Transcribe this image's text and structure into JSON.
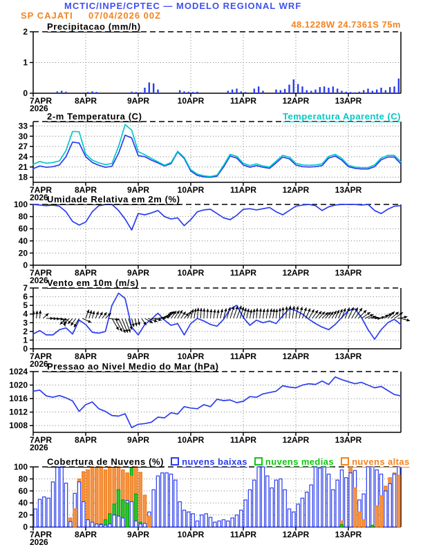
{
  "header": {
    "title": "MCTIC/INPE/CPTEC — MODELO REGIONAL WRF",
    "station": "SP CAJATI",
    "run": "07/04/2026 00Z",
    "location": "48.1228W 24.7361S 75m"
  },
  "colors": {
    "header_blue": "#4050ef",
    "orange": "#f5821e",
    "cyan": "#00c8c8",
    "series_blue": "#2a3cee",
    "green": "#0dc80d",
    "black": "#000000"
  },
  "x_axis": {
    "day_labels": [
      "7APR",
      "8APR",
      "9APR",
      "10APR",
      "11APR",
      "12APR",
      "13APR"
    ],
    "year": "2026",
    "xlim_days": [
      0,
      7
    ]
  },
  "chart_data": [
    {
      "id": "precipitation",
      "type": "bar",
      "title": "Precipitacao (mm/h)",
      "ylim": [
        0,
        2
      ],
      "yticks": [
        0,
        1,
        2
      ],
      "bar_color": "#2a3cee",
      "values": [
        0,
        0,
        0,
        0,
        0,
        0.06,
        0.08,
        0.05,
        0,
        0,
        0,
        0,
        0.04,
        0.06,
        0.04,
        0,
        0,
        0,
        0,
        0,
        0,
        0,
        0.05,
        0.04,
        0.03,
        0.18,
        0.35,
        0.32,
        0.12,
        0,
        0,
        0,
        0,
        0.1,
        0.06,
        0.05,
        0.04,
        0.05,
        0,
        0,
        0,
        0,
        0,
        0,
        0.08,
        0.12,
        0.15,
        0.06,
        0.04,
        0,
        0.15,
        0.22,
        0.08,
        0,
        0,
        0.12,
        0.1,
        0.14,
        0.28,
        0.45,
        0.3,
        0.22,
        0.1,
        0.08,
        0.12,
        0.2,
        0.22,
        0.18,
        0.22,
        0.15,
        0.08,
        0.05,
        0.04,
        0.03,
        0.05,
        0.1,
        0.15,
        0.08,
        0.12,
        0.18,
        0.1,
        0.2,
        0.22,
        0.48
      ]
    },
    {
      "id": "temperature",
      "type": "line",
      "title": "2-m Temperatura (C)",
      "right_label": "Temperatura Aparente (C)",
      "ylim": [
        16.5,
        34.3
      ],
      "yticks": [
        18,
        21,
        24,
        27,
        30,
        33
      ],
      "series": [
        {
          "name": "2-m Temperatura (C)",
          "color": "#2a3cee",
          "values": [
            20.5,
            21.3,
            20.9,
            21.1,
            21.6,
            24.0,
            28.3,
            28.0,
            24.0,
            22.3,
            21.5,
            20.9,
            21.2,
            25.0,
            30.3,
            29.5,
            24.3,
            24.0,
            23.0,
            22.2,
            21.3,
            22.0,
            25.4,
            23.5,
            19.8,
            18.5,
            18.1,
            18.0,
            18.3,
            21.0,
            24.2,
            23.6,
            21.6,
            20.9,
            21.4,
            20.9,
            20.6,
            22.2,
            23.9,
            23.4,
            21.6,
            21.1,
            21.0,
            21.1,
            21.4,
            23.6,
            24.2,
            23.0,
            21.1,
            20.6,
            20.4,
            20.4,
            21.1,
            23.1,
            23.9,
            23.9,
            21.9
          ]
        },
        {
          "name": "Temperatura Aparente (C)",
          "color": "#00c8c8",
          "values": [
            21.8,
            22.6,
            22.1,
            22.3,
            22.8,
            25.8,
            31.4,
            31.3,
            24.8,
            23.0,
            22.2,
            21.7,
            22.0,
            27.0,
            33.4,
            31.8,
            25.5,
            24.6,
            23.5,
            22.5,
            21.5,
            22.3,
            25.6,
            23.8,
            20.2,
            18.9,
            18.4,
            18.2,
            18.6,
            21.5,
            24.7,
            24.1,
            22.1,
            21.4,
            21.9,
            21.3,
            21.0,
            22.7,
            24.4,
            23.9,
            22.1,
            21.6,
            21.5,
            21.6,
            21.9,
            24.1,
            24.7,
            23.5,
            21.5,
            21.0,
            20.8,
            20.8,
            21.6,
            23.6,
            24.4,
            24.4,
            22.5
          ]
        }
      ]
    },
    {
      "id": "humidity",
      "type": "line",
      "title": "Umidade Relativa em 2m (%)",
      "ylim": [
        0,
        100
      ],
      "yticks": [
        0,
        20,
        40,
        60,
        80,
        100
      ],
      "series": [
        {
          "name": "Umidade Relativa em 2m (%)",
          "color": "#2a3cee",
          "values": [
            100,
            99,
            98,
            99,
            97,
            88,
            72,
            66,
            71,
            88,
            98,
            100,
            100,
            90,
            76,
            58,
            85,
            83,
            86,
            90,
            80,
            76,
            78,
            65,
            75,
            88,
            91,
            92,
            85,
            78,
            75,
            82,
            92,
            93,
            91,
            93,
            95,
            88,
            83,
            90,
            97,
            99,
            100,
            98,
            90,
            96,
            99,
            100,
            100,
            100,
            99,
            100,
            90,
            85,
            92,
            97,
            98
          ]
        }
      ]
    },
    {
      "id": "wind",
      "type": "line+vectors",
      "title": "Vento em 10m (m/s)",
      "ylim": [
        0,
        7
      ],
      "yticks": [
        0,
        1,
        2,
        3,
        4,
        5,
        6,
        7
      ],
      "series": [
        {
          "name": "Velocidade do vento em 10m (m/s)",
          "color": "#2a3cee",
          "values": [
            1.7,
            2.1,
            1.6,
            1.6,
            2.2,
            2.4,
            1.7,
            3.3,
            2.8,
            1.9,
            1.8,
            2.0,
            5.0,
            6.4,
            5.8,
            2.5,
            1.6,
            2.8,
            3.4,
            4.1,
            3.3,
            2.7,
            2.9,
            1.6,
            2.9,
            3.5,
            3.2,
            2.8,
            2.6,
            3.4,
            4.6,
            5.0,
            3.6,
            2.7,
            3.3,
            3.0,
            3.2,
            2.9,
            3.8,
            4.6,
            4.4,
            4.0,
            3.4,
            2.9,
            2.5,
            2.2,
            2.8,
            3.6,
            4.4,
            4.6,
            3.6,
            2.2,
            1.1,
            2.2,
            3.0,
            3.4,
            2.8
          ]
        }
      ],
      "vectors": {
        "baseline_value": 3.5,
        "color": "#000000",
        "direction_deg": [
          85,
          85,
          0,
          -5,
          -10,
          -135,
          -130,
          -120,
          70,
          75,
          60,
          45,
          -60,
          -65,
          -70,
          -75,
          -80,
          -30,
          -10,
          10,
          40,
          55,
          60,
          50,
          75,
          85,
          88,
          85,
          80,
          75,
          72,
          70,
          75,
          80,
          85,
          82,
          78,
          85,
          88,
          85,
          80,
          70,
          60,
          50,
          45,
          55,
          65,
          70,
          65,
          55,
          35,
          15,
          0,
          25,
          45,
          35,
          -15
        ]
      }
    },
    {
      "id": "pressure",
      "type": "line",
      "title": "Pressao ao Nivel Medio do Mar (hPa)",
      "ylim": [
        1006,
        1024
      ],
      "yticks": [
        1008,
        1012,
        1016,
        1020,
        1024
      ],
      "series": [
        {
          "name": "Pressao ao Nivel Medio do Mar (hPa)",
          "color": "#2a3cee",
          "values": [
            1018.2,
            1018.5,
            1016.8,
            1016.4,
            1016.9,
            1016.2,
            1015.3,
            1012.2,
            1014.2,
            1015.0,
            1013.0,
            1012.2,
            1011.0,
            1010.8,
            1011.5,
            1007.4,
            1008.4,
            1008.6,
            1009.0,
            1010.5,
            1010.3,
            1011.8,
            1011.4,
            1013.6,
            1013.2,
            1013.0,
            1014.2,
            1013.6,
            1015.8,
            1015.4,
            1015.6,
            1014.8,
            1015.2,
            1016.6,
            1016.4,
            1017.4,
            1017.8,
            1018.2,
            1019.8,
            1019.4,
            1019.2,
            1020.0,
            1020.4,
            1020.2,
            1021.2,
            1020.2,
            1022.4,
            1021.6,
            1021.0,
            1020.4,
            1020.8,
            1020.0,
            1019.2,
            1019.6,
            1018.4,
            1017.2,
            1016.8
          ]
        }
      ]
    },
    {
      "id": "clouds",
      "type": "bar",
      "title": "Cobertura de Nuvens (%)",
      "ylim": [
        0,
        100
      ],
      "yticks": [
        0,
        20,
        40,
        60,
        80,
        100
      ],
      "series": [
        {
          "name": "nuvens baixas",
          "fill": "#ffffff",
          "stroke": "#2a3cee",
          "label_color": "#2a3cee",
          "values": [
            30,
            46,
            50,
            48,
            75,
            100,
            100,
            73,
            9,
            56,
            75,
            42,
            12,
            8,
            5,
            4,
            3,
            5,
            20,
            18,
            15,
            44,
            42,
            10,
            5,
            6,
            25,
            62,
            85,
            90,
            90,
            88,
            78,
            42,
            28,
            25,
            22,
            10,
            20,
            22,
            16,
            8,
            10,
            12,
            10,
            15,
            20,
            28,
            45,
            62,
            78,
            100,
            100,
            85,
            65,
            78,
            80,
            62,
            30,
            25,
            38,
            48,
            58,
            70,
            100,
            98,
            100,
            88,
            62,
            78,
            95,
            82,
            90,
            94,
            45,
            55,
            100,
            100,
            95,
            88,
            60,
            72,
            88,
            100
          ]
        },
        {
          "name": "nuvens medias",
          "fill": "#2ec82e",
          "stroke": "#0a9e0a",
          "label_color": "#0dc80d",
          "values": [
            0,
            0,
            0,
            0,
            0,
            0,
            0,
            0,
            0,
            0,
            0,
            0,
            0,
            0,
            0,
            5,
            12,
            22,
            38,
            62,
            45,
            40,
            98,
            55,
            8,
            0,
            0,
            0,
            0,
            0,
            0,
            0,
            0,
            0,
            0,
            0,
            0,
            0,
            0,
            0,
            0,
            0,
            0,
            0,
            0,
            0,
            0,
            0,
            0,
            0,
            0,
            0,
            0,
            0,
            0,
            0,
            0,
            0,
            0,
            0,
            0,
            0,
            0,
            0,
            0,
            0,
            0,
            0,
            0,
            0,
            4,
            0,
            0,
            0,
            0,
            0,
            0,
            3,
            0,
            0,
            0,
            0,
            0,
            0
          ]
        },
        {
          "name": "nuvens altas",
          "fill": "#f5944a",
          "stroke": "#ef7d15",
          "label_color": "#f5821e",
          "values": [
            0,
            0,
            0,
            0,
            0,
            0,
            0,
            0,
            15,
            30,
            80,
            92,
            95,
            100,
            98,
            100,
            95,
            100,
            98,
            100,
            95,
            90,
            85,
            100,
            91,
            53,
            18,
            0,
            0,
            0,
            0,
            0,
            0,
            0,
            0,
            0,
            0,
            0,
            0,
            0,
            0,
            0,
            0,
            0,
            0,
            0,
            0,
            0,
            0,
            0,
            0,
            0,
            0,
            0,
            0,
            0,
            0,
            0,
            0,
            0,
            0,
            0,
            0,
            0,
            0,
            0,
            0,
            0,
            0,
            0,
            10,
            0,
            100,
            65,
            25,
            12,
            0,
            0,
            35,
            52,
            68,
            82,
            90,
            86
          ]
        }
      ]
    }
  ]
}
